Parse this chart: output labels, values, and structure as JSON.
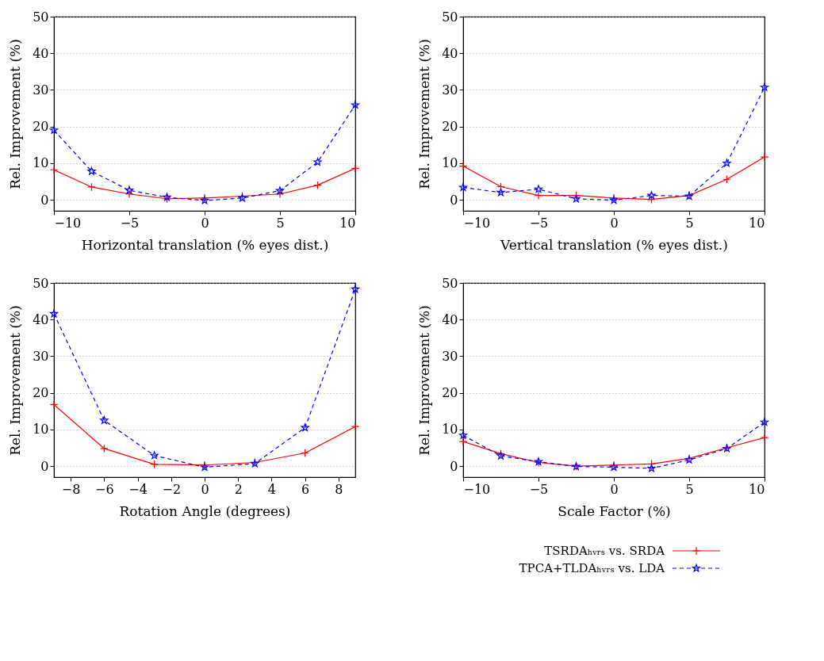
{
  "chart_data": [
    {
      "type": "line",
      "xlabel": "Horizontal translation (% eyes dist.)",
      "ylabel": "Rel. Improvement (%)",
      "x": [
        -10,
        -7.5,
        -5,
        -2.5,
        0,
        2.5,
        5,
        7.5,
        10
      ],
      "xlim": [
        -10,
        10
      ],
      "xticks": [
        -10,
        -5,
        0,
        5,
        10
      ],
      "ylim": [
        -3,
        50
      ],
      "yticks": [
        0,
        10,
        20,
        30,
        40,
        50
      ],
      "grid": "y",
      "series": [
        {
          "color": "#ff0000",
          "marker": "cross",
          "line_style": "solid",
          "values": [
            8.2,
            3.5,
            1.6,
            0.3,
            0.5,
            1.0,
            1.6,
            4.0,
            8.6
          ]
        },
        {
          "color": "#0000ff",
          "marker": "star",
          "line_style": "dashed",
          "values": [
            19.0,
            7.8,
            2.6,
            0.7,
            -0.2,
            0.5,
            2.5,
            10.3,
            25.9
          ]
        }
      ]
    },
    {
      "type": "line",
      "xlabel": "Vertical translation (% eyes dist.)",
      "ylabel": "Rel. Improvement (%)",
      "x": [
        -10,
        -7.5,
        -5,
        -2.5,
        0,
        2.5,
        5,
        7.5,
        10
      ],
      "xlim": [
        -10,
        10
      ],
      "xticks": [
        -10,
        -5,
        0,
        5,
        10
      ],
      "ylim": [
        -3,
        50
      ],
      "yticks": [
        0,
        10,
        20,
        30,
        40,
        50
      ],
      "grid": "y",
      "series": [
        {
          "color": "#ff0000",
          "marker": "cross",
          "line_style": "solid",
          "values": [
            9.2,
            3.6,
            1.2,
            1.2,
            0.5,
            0.1,
            1.2,
            5.6,
            11.7
          ]
        },
        {
          "color": "#0000ff",
          "marker": "star",
          "line_style": "dashed",
          "values": [
            3.4,
            2.0,
            2.9,
            0.3,
            -0.1,
            1.2,
            1.0,
            10.0,
            30.7
          ]
        }
      ]
    },
    {
      "type": "line",
      "xlabel": "Rotation Angle (degrees)",
      "ylabel": "Rel. Improvement (%)",
      "x": [
        -9,
        -6,
        -3,
        0,
        3,
        6,
        9
      ],
      "xlim": [
        -9,
        9
      ],
      "xticks": [
        -8,
        -6,
        -4,
        -2,
        0,
        2,
        4,
        6,
        8
      ],
      "ylim": [
        -3,
        50
      ],
      "yticks": [
        0,
        10,
        20,
        30,
        40,
        50
      ],
      "grid": "y",
      "series": [
        {
          "color": "#ff0000",
          "marker": "cross",
          "line_style": "solid",
          "values": [
            16.8,
            4.8,
            0.5,
            0.3,
            1.0,
            3.6,
            10.8
          ]
        },
        {
          "color": "#0000ff",
          "marker": "star",
          "line_style": "dashed",
          "values": [
            41.6,
            12.5,
            2.9,
            -0.3,
            0.7,
            10.5,
            48.3
          ]
        }
      ]
    },
    {
      "type": "line",
      "xlabel": "Scale Factor (%)",
      "ylabel": "Rel. Improvement (%)",
      "x": [
        -10,
        -7.5,
        -5,
        -2.5,
        0,
        2.5,
        5,
        7.5,
        10
      ],
      "xlim": [
        -10,
        10
      ],
      "xticks": [
        -10,
        -5,
        0,
        5,
        10
      ],
      "ylim": [
        -3,
        50
      ],
      "yticks": [
        0,
        10,
        20,
        30,
        40,
        50
      ],
      "grid": "y",
      "legend": "bottom right",
      "series": [
        {
          "name": "TSRDAₕᵥᵣₛ vs. SRDA",
          "color": "#ff0000",
          "marker": "cross",
          "line_style": "solid",
          "values": [
            6.7,
            3.4,
            1.0,
            0.0,
            0.3,
            0.6,
            2.1,
            5.0,
            7.8
          ]
        },
        {
          "name": "TPCA+TLDAₕᵥᵣₛ vs. LDA",
          "color": "#0000ff",
          "marker": "star",
          "line_style": "dashed",
          "values": [
            8.4,
            2.8,
            1.2,
            -0.1,
            -0.3,
            -0.6,
            1.7,
            4.8,
            12.0
          ]
        }
      ]
    }
  ]
}
